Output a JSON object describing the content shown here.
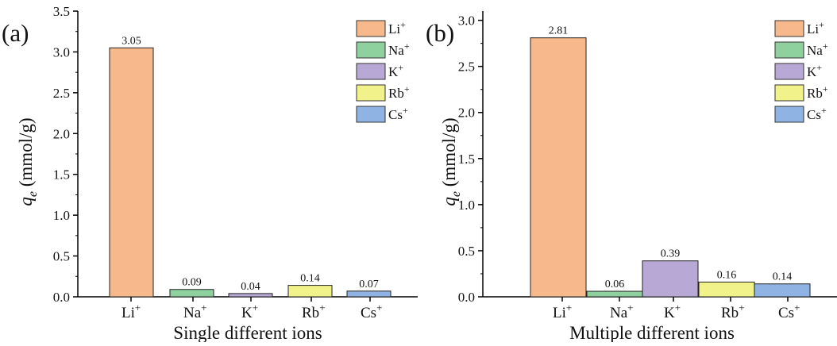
{
  "ion_colors": [
    "#f7b98c",
    "#8fd19e",
    "#b7a8d6",
    "#f2f28a",
    "#8fb3e2"
  ],
  "tick_label_colors": [
    "#f08c4a",
    "#1c8a3c",
    "#6a3fb5",
    "#d8d84a",
    "#3b84d6"
  ],
  "chart_data": [
    {
      "type": "bar",
      "panel_label": "(a)",
      "xlabel": "Single different ions",
      "ylabel_symbol": "q",
      "ylabel_subscript": "e",
      "ylabel_unit": "(mmol/g)",
      "ylim": [
        0,
        3.5
      ],
      "yticks": [
        "0.0",
        "0.5",
        "1.0",
        "1.5",
        "2.0",
        "2.5",
        "3.0",
        "3.5"
      ],
      "categories": [
        {
          "base": "Li",
          "sup": "+"
        },
        {
          "base": "Na",
          "sup": "+"
        },
        {
          "base": "K",
          "sup": "+"
        },
        {
          "base": "Rb",
          "sup": "+"
        },
        {
          "base": "Cs",
          "sup": "+"
        }
      ],
      "values": [
        3.05,
        0.09,
        0.04,
        0.14,
        0.07
      ],
      "value_labels": [
        "3.05",
        "0.09",
        "0.04",
        "0.14",
        "0.07"
      ],
      "legend_position": "top-right",
      "legend": [
        {
          "base": "Li",
          "sup": "+"
        },
        {
          "base": "Na",
          "sup": "+"
        },
        {
          "base": "K",
          "sup": "+"
        },
        {
          "base": "Rb",
          "sup": "+"
        },
        {
          "base": "Cs",
          "sup": "+"
        }
      ]
    },
    {
      "type": "bar",
      "panel_label": "(b)",
      "xlabel": "Multiple different ions",
      "ylabel_symbol": "q",
      "ylabel_subscript": "e",
      "ylabel_unit": "(mmol/g)",
      "ylim": [
        0,
        3.1
      ],
      "yticks": [
        "0.0",
        "0.5",
        "1.0",
        "1.5",
        "2.0",
        "2.5",
        "3.0"
      ],
      "categories": [
        {
          "base": "Li",
          "sup": "+"
        },
        {
          "base": "Na",
          "sup": "+"
        },
        {
          "base": "K",
          "sup": "+"
        },
        {
          "base": "Rb",
          "sup": "+"
        },
        {
          "base": "Cs",
          "sup": "+"
        }
      ],
      "values": [
        2.81,
        0.06,
        0.39,
        0.16,
        0.14
      ],
      "value_labels": [
        "2.81",
        "0.06",
        "0.39",
        "0.16",
        "0.14"
      ],
      "legend_position": "top-right",
      "legend": [
        {
          "base": "Li",
          "sup": "+"
        },
        {
          "base": "Na",
          "sup": "+"
        },
        {
          "base": "K",
          "sup": "+"
        },
        {
          "base": "Rb",
          "sup": "+"
        },
        {
          "base": "Cs",
          "sup": "+"
        }
      ]
    }
  ]
}
